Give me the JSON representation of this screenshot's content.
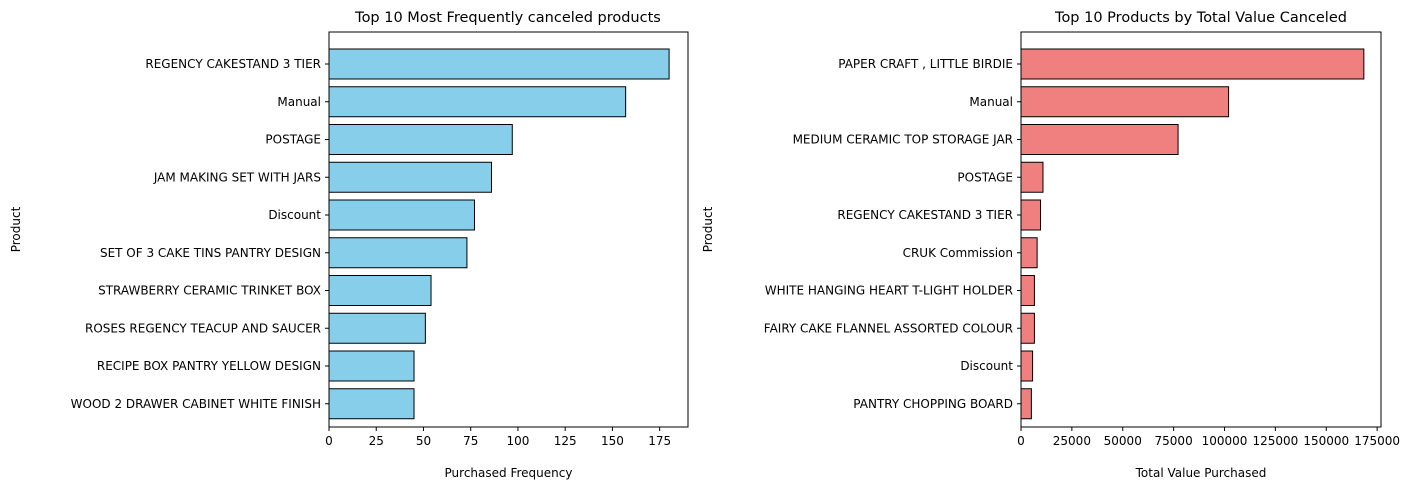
{
  "chart_data": [
    {
      "type": "bar",
      "orientation": "horizontal",
      "title": "Top 10 Most Frequently canceled products",
      "xlabel": "Purchased Frequency",
      "ylabel": "Product",
      "categories": [
        "REGENCY CAKESTAND 3 TIER",
        "Manual",
        "POSTAGE",
        "JAM MAKING SET WITH JARS",
        "Discount",
        "SET OF 3 CAKE TINS PANTRY DESIGN ",
        "STRAWBERRY CERAMIC TRINKET BOX",
        "ROSES REGENCY TEACUP AND SAUCER ",
        "RECIPE BOX PANTRY YELLOW DESIGN",
        "WOOD 2 DRAWER CABINET WHITE FINISH"
      ],
      "values": [
        180,
        157,
        97,
        86,
        77,
        73,
        54,
        51,
        45,
        45
      ],
      "xlim": [
        0,
        190
      ],
      "xticks": [
        0,
        25,
        50,
        75,
        100,
        125,
        150,
        175
      ],
      "xtick_labels": [
        "0",
        "25",
        "50",
        "75",
        "100",
        "125",
        "150",
        "175"
      ],
      "bar_color": "#87ceeb",
      "edge_color": "#000000",
      "grid": false
    },
    {
      "type": "bar",
      "orientation": "horizontal",
      "title": "Top 10 Products by Total Value Canceled",
      "xlabel": "Total Value Purchased",
      "ylabel": "Product",
      "categories": [
        "PAPER CRAFT , LITTLE BIRDIE",
        "Manual",
        "MEDIUM CERAMIC TOP STORAGE JAR",
        "POSTAGE",
        "REGENCY CAKESTAND 3 TIER",
        "CRUK Commission",
        "WHITE HANGING HEART T-LIGHT HOLDER",
        "FAIRY CAKE FLANNEL ASSORTED COLOUR",
        "Discount",
        "PANTRY CHOPPING BOARD"
      ],
      "values": [
        168470,
        102000,
        77184,
        10800,
        9600,
        7933,
        6600,
        6600,
        5696,
        5100
      ],
      "xlim": [
        0,
        176900
      ],
      "xticks": [
        0,
        25000,
        50000,
        75000,
        100000,
        125000,
        150000,
        175000
      ],
      "xtick_labels": [
        "0",
        "25000",
        "50000",
        "75000",
        "100000",
        "125000",
        "150000",
        "175000"
      ],
      "bar_color": "#f08080",
      "edge_color": "#000000",
      "grid": false
    }
  ]
}
